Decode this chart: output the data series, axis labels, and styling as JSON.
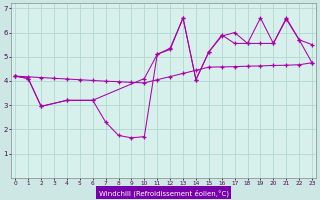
{
  "background_color": "#cde8e4",
  "plot_bg_color": "#d8f0ec",
  "line_color": "#aa00aa",
  "xlabel_bg": "#8800aa",
  "xlim": [
    -0.3,
    23.3
  ],
  "ylim": [
    0,
    7.2
  ],
  "xlabel": "Windchill (Refroidissement éolien,°C)",
  "xtick_labels": [
    "0",
    "1",
    "2",
    "3",
    "4",
    "5",
    "6",
    "7",
    "8",
    "9",
    "10",
    "11",
    "12",
    "13",
    "14",
    "15",
    "16",
    "17",
    "18",
    "19",
    "20",
    "21",
    "22",
    "23"
  ],
  "ytick_vals": [
    1,
    2,
    3,
    4,
    5,
    6,
    7
  ],
  "line1_x": [
    0,
    1,
    2,
    4,
    6,
    7,
    8,
    9,
    10,
    11,
    12,
    13,
    14,
    15,
    16,
    17,
    18,
    19,
    20,
    21,
    22,
    23
  ],
  "line1_y": [
    4.2,
    4.1,
    2.95,
    3.2,
    3.2,
    2.3,
    1.75,
    1.65,
    1.7,
    5.1,
    5.3,
    6.6,
    4.05,
    5.2,
    5.85,
    6.0,
    5.55,
    5.55,
    5.55,
    6.6,
    5.7,
    5.5
  ],
  "line2_x": [
    0,
    1,
    2,
    3,
    4,
    5,
    6,
    7,
    8,
    9,
    10,
    11,
    12,
    13,
    14,
    15,
    16,
    17,
    18,
    19,
    20,
    21,
    22,
    23
  ],
  "line2_y": [
    4.2,
    4.17,
    4.14,
    4.11,
    4.08,
    4.05,
    4.02,
    3.99,
    3.97,
    3.94,
    3.92,
    4.05,
    4.18,
    4.31,
    4.44,
    4.57,
    4.58,
    4.59,
    4.61,
    4.62,
    4.64,
    4.65,
    4.67,
    4.75
  ],
  "line3_x": [
    0,
    1,
    2,
    4,
    6,
    10,
    11,
    12,
    13,
    14,
    15,
    16,
    17,
    18,
    19,
    20,
    21,
    22,
    23
  ],
  "line3_y": [
    4.2,
    4.1,
    2.95,
    3.2,
    3.2,
    4.1,
    5.1,
    5.35,
    6.6,
    4.05,
    5.2,
    5.9,
    5.55,
    5.55,
    6.6,
    5.55,
    6.55,
    5.7,
    4.75
  ]
}
